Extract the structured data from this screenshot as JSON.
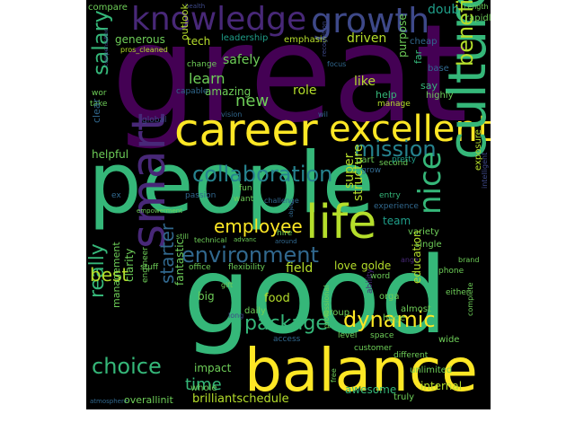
{
  "palette": {
    "dark_purple": "#440154",
    "purple": "#482878",
    "indigo": "#3e4989",
    "blue": "#31688e",
    "teal": "#26828e",
    "sea": "#1f9e89",
    "green": "#35b779",
    "lime": "#6ece58",
    "yellow_green": "#b5de2b",
    "yellow": "#fde725"
  },
  "words": {
    "great": "great",
    "people": "people",
    "good": "good",
    "balance": "balance",
    "career": "career",
    "excellent": "excellent",
    "culture": "culture",
    "life": "life",
    "smart": "smart",
    "knowledge": "knowledge",
    "growth": "growth",
    "collaboration": "collaboration",
    "mission": "mission",
    "environment": "environment",
    "nice": "nice",
    "employee": "employee",
    "dynamic": "dynamic",
    "package": "package",
    "choice": "choice",
    "salary": "salary",
    "benefit": "benefit",
    "really": "really",
    "best": "best",
    "starter": "starter",
    "time": "time",
    "new": "new",
    "learn": "learn",
    "safely": "safely",
    "amazing": "amazing",
    "generous": "generous",
    "tech": "tech",
    "outlook": "outlook",
    "purpose": "purpose",
    "like": "like",
    "driven": "driven",
    "leadership": "leadership",
    "emphasis": "emphasis",
    "compare": "compare",
    "health": "health",
    "doub": "doub",
    "length": "Length",
    "rapidly": "rapidly",
    "cheap": "cheap",
    "pros_cleaned": "pros_cleaned",
    "focus": "focus",
    "recognition": "recognition",
    "base": "base",
    "far": "far",
    "say": "say",
    "highly": "highly",
    "help": "help",
    "manage": "manage",
    "change": "change",
    "capable": "capable",
    "role": "role",
    "vision": "vision",
    "wil": "wil",
    "global": "global",
    "take": "take",
    "clear": "clear",
    "wor": "wor",
    "compensation": "compensation",
    "helpful": "helpful",
    "part": "part",
    "grow": "grow",
    "second": "second",
    "pretty": "pretty",
    "super": "super",
    "structure": "structure",
    "team": "team",
    "exposure": "exposure",
    "intelligent": "intelligent",
    "entry": "entry",
    "experience": "experience",
    "variety": "variety",
    "single": "single",
    "ex": "ex",
    "passion": "passion",
    "fun": "fun",
    "want": "want",
    "challenge": "challenge",
    "hire": "hire",
    "around": "around",
    "object": "object",
    "empowerment": "empowerment",
    "technical": "technical",
    "advanc": "advanc",
    "still": "still",
    "stuff": "stuff",
    "office": "office",
    "flexibility": "flexibility",
    "field": "field",
    "love": "love",
    "golde": "golde",
    "word": "word",
    "ange": "ange",
    "brand": "brand",
    "phone": "phone",
    "either": "either",
    "almost": "almost",
    "management": "management",
    "clarity": "clarity",
    "fantastic": "fantastic",
    "engineer": "engineer",
    "gift": "gift",
    "big": "big",
    "food": "food",
    "daily": "daily",
    "long": "long",
    "ability": "ability",
    "orga": "orga",
    "education": "education",
    "group": "group",
    "huge": "huge",
    "professional": "professional",
    "complete": "complete",
    "level": "level",
    "space": "space",
    "access": "access",
    "customer": "customer",
    "wide": "wide",
    "different": "different",
    "unlimited": "unlimited",
    "impact": "impact",
    "whole": "whole",
    "free": "free",
    "awesome": "awesome",
    "internal": "internal",
    "truly": "truly",
    "atmosphere": "atmosphere",
    "overallinit": "overallinit",
    "brilliantschedule": "brilliantschedule"
  }
}
